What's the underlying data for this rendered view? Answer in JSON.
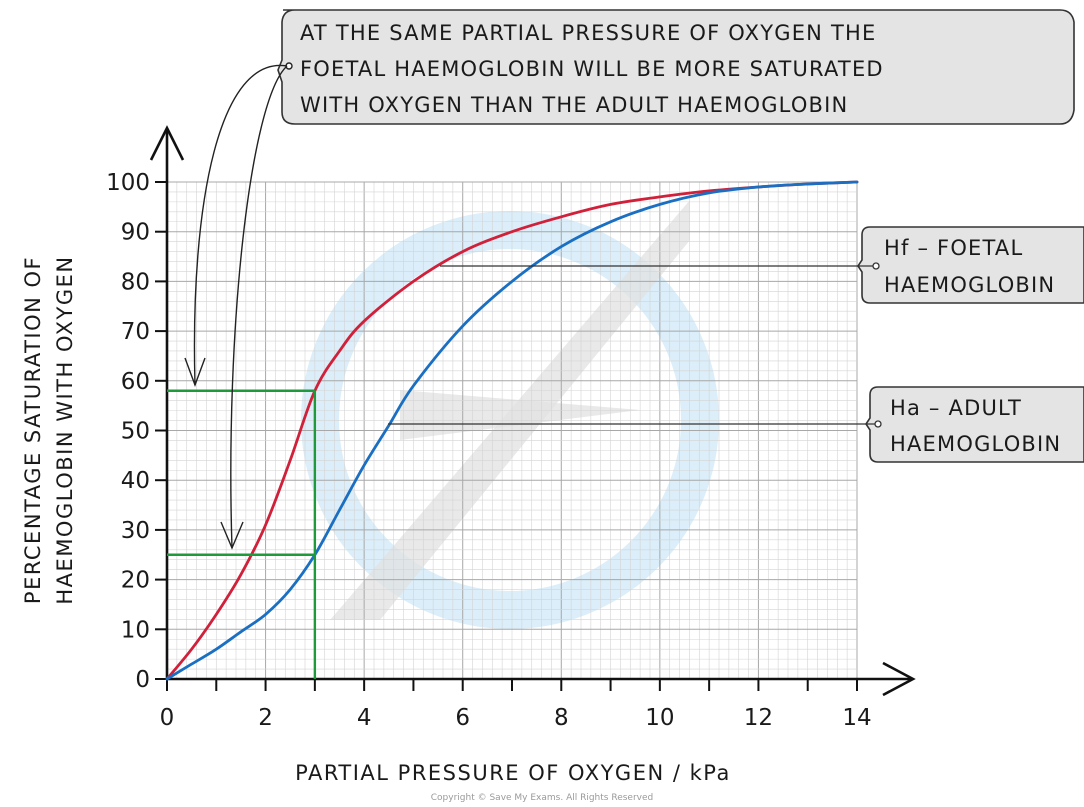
{
  "callout": {
    "lines": [
      "AT THE SAME PARTIAL PRESSURE OF OXYGEN THE",
      "FOETAL HAEMOGLOBIN WILL BE MORE SATURATED",
      "WITH OXYGEN THAN THE ADULT HAEMOGLOBIN"
    ]
  },
  "labels": {
    "foetal": [
      "Hf – FOETAL",
      "HAEMOGLOBIN"
    ],
    "adult": [
      "Ha – ADULT",
      "HAEMOGLOBIN"
    ]
  },
  "copyright": "Copyright © Save My Exams. All Rights Reserved",
  "colors": {
    "foetal": "#d0203a",
    "adult": "#1a6fc2",
    "marker": "#1f9a3a",
    "grid_minor": "#d4d4d4",
    "grid_major": "#a8a8a8",
    "callout_fill": "#e4e4e4",
    "watermark": "#cfe8f7"
  },
  "chart_data": {
    "type": "line",
    "xlabel": "PARTIAL PRESSURE OF OXYGEN / kPa",
    "ylabel": [
      "PERCENTAGE SATURATION OF",
      "HAEMOGLOBIN WITH OXYGEN"
    ],
    "xlim": [
      0,
      14
    ],
    "ylim": [
      0,
      100
    ],
    "xticks": [
      0,
      2,
      4,
      6,
      8,
      10,
      12,
      14
    ],
    "yticks": [
      0,
      10,
      20,
      30,
      40,
      50,
      60,
      70,
      80,
      90,
      100
    ],
    "grid": true,
    "series": [
      {
        "name": "Hf – FOETAL HAEMOGLOBIN",
        "key": "foetal",
        "x": [
          0,
          0.5,
          1,
          1.5,
          2,
          2.5,
          3,
          3.5,
          4,
          5,
          6,
          7,
          8,
          9,
          10,
          11,
          12,
          13,
          14
        ],
        "y": [
          0,
          6,
          13,
          21,
          31,
          44,
          58,
          66,
          72,
          80,
          86,
          90,
          93,
          95.5,
          97,
          98.2,
          99,
          99.6,
          100
        ]
      },
      {
        "name": "Ha – ADULT HAEMOGLOBIN",
        "key": "adult",
        "x": [
          0,
          0.5,
          1,
          1.5,
          2,
          2.5,
          3,
          3.5,
          4,
          4.5,
          5,
          6,
          7,
          8,
          9,
          10,
          11,
          12,
          13,
          14
        ],
        "y": [
          0,
          3,
          6,
          9.5,
          13,
          18,
          25,
          34,
          43,
          51,
          59,
          71,
          80,
          87,
          92,
          95.5,
          97.8,
          99,
          99.6,
          100
        ]
      }
    ],
    "annotations": {
      "marker_x": 3,
      "marker_y_values": [
        58,
        25
      ]
    }
  }
}
